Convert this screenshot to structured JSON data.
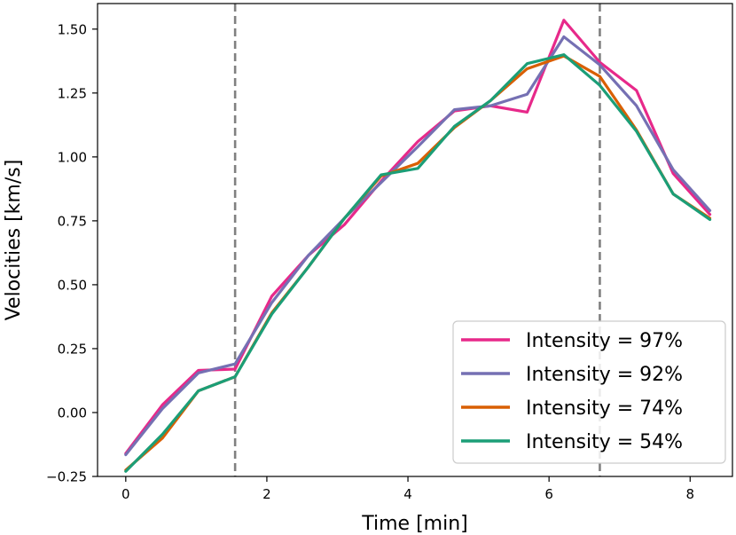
{
  "chart_data": {
    "type": "line",
    "title": "",
    "xlabel": "Time [min]",
    "ylabel": "Velocities [km/s]",
    "xlim": [
      -0.4,
      8.6
    ],
    "ylim": [
      -0.25,
      1.6
    ],
    "xticks": [
      0,
      2,
      4,
      6,
      8
    ],
    "xtick_labels": [
      "0",
      "2",
      "4",
      "6",
      "8"
    ],
    "yticks": [
      -0.25,
      0.0,
      0.25,
      0.5,
      0.75,
      1.0,
      1.25,
      1.5
    ],
    "ytick_labels": [
      "−0.25",
      "0.00",
      "0.25",
      "0.50",
      "0.75",
      "1.00",
      "1.25",
      "1.50"
    ],
    "vlines": [
      {
        "x": 1.55,
        "style": "dashed",
        "color": "#808080"
      },
      {
        "x": 6.72,
        "style": "dashed",
        "color": "#808080"
      }
    ],
    "legend": {
      "position": "lower-right"
    },
    "x": [
      0,
      0.52,
      1.03,
      1.55,
      2.07,
      2.59,
      3.1,
      3.62,
      4.14,
      4.66,
      5.17,
      5.69,
      6.21,
      6.72,
      7.24,
      7.76,
      8.28
    ],
    "series": [
      {
        "name": "Intensity = 97%",
        "color": "#e7298a",
        "values": [
          -0.16,
          0.03,
          0.165,
          0.17,
          0.455,
          0.615,
          0.735,
          0.905,
          1.06,
          1.18,
          1.2,
          1.175,
          1.535,
          1.37,
          1.26,
          0.935,
          0.775
        ]
      },
      {
        "name": "Intensity = 92%",
        "color": "#7570b3",
        "values": [
          -0.165,
          0.015,
          0.155,
          0.19,
          0.43,
          0.615,
          0.76,
          0.9,
          1.04,
          1.185,
          1.2,
          1.245,
          1.47,
          1.36,
          1.2,
          0.95,
          0.79
        ]
      },
      {
        "name": "Intensity = 74%",
        "color": "#d95f02",
        "values": [
          -0.225,
          -0.1,
          0.085,
          0.14,
          0.39,
          0.57,
          0.76,
          0.925,
          0.975,
          1.115,
          1.22,
          1.345,
          1.395,
          1.315,
          1.105,
          0.855,
          0.76
        ]
      },
      {
        "name": "Intensity = 54%",
        "color": "#1b9e77",
        "values": [
          -0.23,
          -0.085,
          0.085,
          0.14,
          0.385,
          0.57,
          0.76,
          0.93,
          0.955,
          1.12,
          1.22,
          1.365,
          1.4,
          1.28,
          1.1,
          0.855,
          0.755
        ]
      }
    ]
  }
}
